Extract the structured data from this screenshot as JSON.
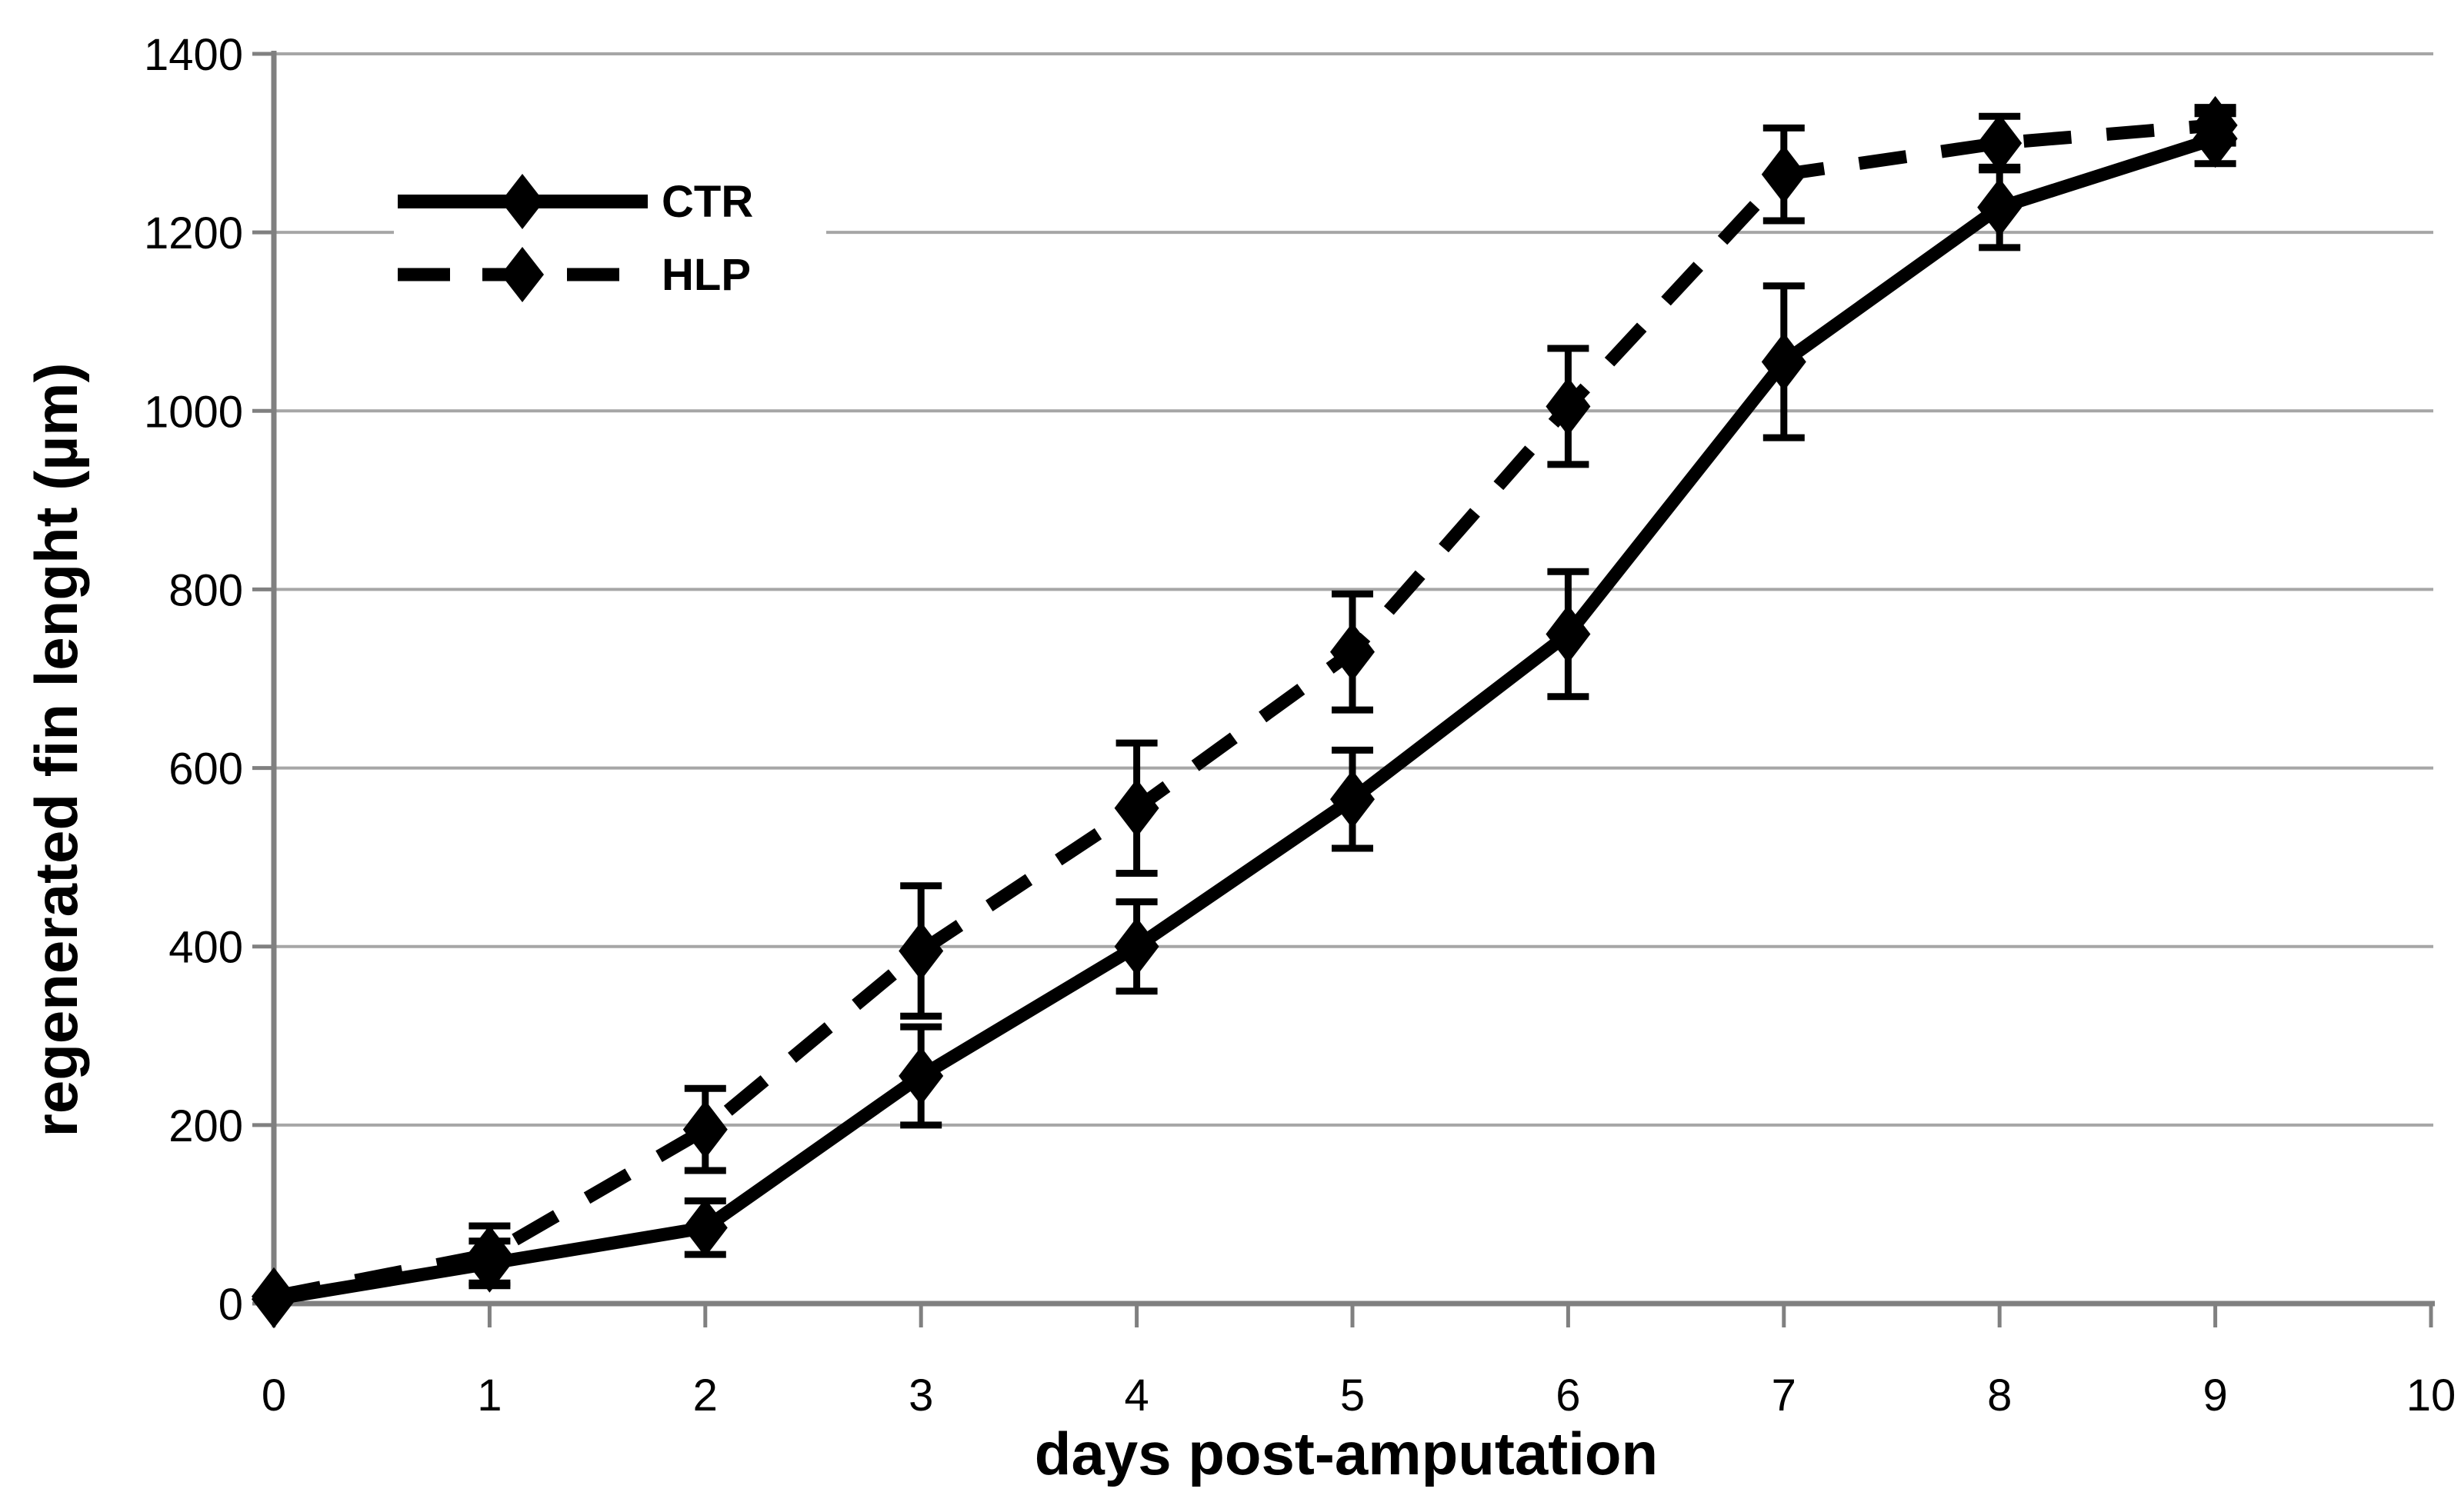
{
  "figure": {
    "background": "#ffffff",
    "text_color": "#000000",
    "grid_color": "#a6a6a6",
    "axis_color": "#808080",
    "series_color": "#000000"
  },
  "chart_data": {
    "type": "line",
    "x": [
      0,
      1,
      2,
      3,
      4,
      5,
      6,
      7,
      8,
      9
    ],
    "series": [
      {
        "name": "CTR",
        "line_style": "solid",
        "marker": "diamond",
        "values": [
          5,
          45,
          85,
          255,
          400,
          565,
          750,
          1055,
          1228,
          1305
        ],
        "error": [
          0,
          25,
          30,
          55,
          50,
          55,
          70,
          85,
          45,
          28
        ]
      },
      {
        "name": "HLP",
        "line_style": "dashed",
        "marker": "diamond",
        "values": [
          8,
          55,
          195,
          395,
          555,
          730,
          1005,
          1265,
          1300,
          1320
        ],
        "error": [
          0,
          32,
          46,
          73,
          73,
          65,
          65,
          52,
          30,
          20
        ]
      }
    ],
    "xlabel": "days post-amputation",
    "ylabel": "regenerated fin lenght (µm)",
    "xlim": [
      0,
      10
    ],
    "ylim": [
      0,
      1400
    ],
    "xticks": [
      0,
      1,
      2,
      3,
      4,
      5,
      6,
      7,
      8,
      9,
      10
    ],
    "yticks": [
      0,
      200,
      400,
      600,
      800,
      1000,
      1200,
      1400
    ],
    "grid": "horizontal",
    "legend_position": "inside-top-left",
    "error_bars": true
  }
}
